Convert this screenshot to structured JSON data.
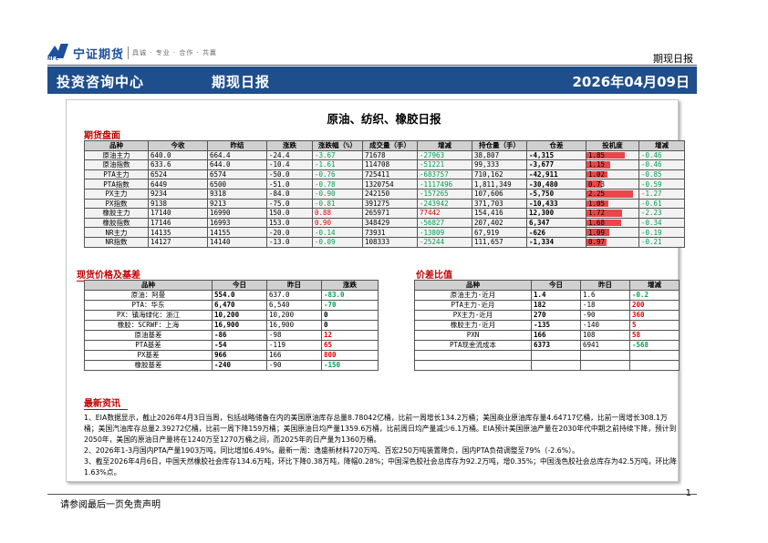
{
  "header": {
    "logo_name": "宁证期货",
    "logo_abbr": "NFC",
    "logo_slogan": "具诚 · 专业 · 合作 · 共赢",
    "report_tag": "期现日报"
  },
  "banner": {
    "org": "投资咨询中心",
    "type": "期现日报",
    "date": "2026年04月09日"
  },
  "doc_title": "原油、纺织、橡胶日报",
  "futures": {
    "section_title": "期货盘面",
    "columns": [
      "品种",
      "今收",
      "昨结",
      "涨跌",
      "涨跌幅（%）",
      "成交量（手）",
      "增减",
      "持仓量（手）",
      "仓差",
      "投机度",
      "增减"
    ],
    "rows": [
      {
        "name": "原油主力",
        "close": "640.0",
        "prev": "664.4",
        "chg": "-24.4",
        "pct": "-3.67",
        "vol": "71678",
        "vol_chg": "-27963",
        "oi": "38,807",
        "oi_chg": "-4,315",
        "spec": "1.85",
        "spec_level": 0.74,
        "spec_chg": "-0.46"
      },
      {
        "name": "原油指数",
        "close": "633.6",
        "prev": "644.0",
        "chg": "-10.4",
        "pct": "-1.61",
        "vol": "114708",
        "vol_chg": "-51221",
        "oi": "99,333",
        "oi_chg": "-3,677",
        "spec": "1.15",
        "spec_level": 0.46,
        "spec_chg": "-0.46"
      },
      {
        "name": "PTA主力",
        "close": "6524",
        "prev": "6574",
        "chg": "-50.0",
        "pct": "-0.76",
        "vol": "725411",
        "vol_chg": "-683757",
        "oi": "710,162",
        "oi_chg": "-42,911",
        "spec": "1.02",
        "spec_level": 0.41,
        "spec_chg": "-0.85"
      },
      {
        "name": "PTA指数",
        "close": "6449",
        "prev": "6500",
        "chg": "-51.0",
        "pct": "-0.78",
        "vol": "1320754",
        "vol_chg": "-1117496",
        "oi": "1,811,349",
        "oi_chg": "-30,480",
        "spec": "0.73",
        "spec_level": 0.29,
        "spec_chg": "-0.59"
      },
      {
        "name": "PX主力",
        "close": "9234",
        "prev": "9318",
        "chg": "-84.0",
        "pct": "-0.90",
        "vol": "242150",
        "vol_chg": "-157265",
        "oi": "107,606",
        "oi_chg": "-5,750",
        "spec": "2.25",
        "spec_level": 0.9,
        "spec_chg": "-1.27"
      },
      {
        "name": "PX指数",
        "close": "9138",
        "prev": "9213",
        "chg": "-75.0",
        "pct": "-0.81",
        "vol": "391275",
        "vol_chg": "-243942",
        "oi": "371,703",
        "oi_chg": "-10,433",
        "spec": "1.05",
        "spec_level": 0.42,
        "spec_chg": "-0.61"
      },
      {
        "name": "橡胶主力",
        "close": "17140",
        "prev": "16990",
        "chg": "150.0",
        "pct": "0.88",
        "vol": "265971",
        "vol_chg": "77442",
        "oi": "154,416",
        "oi_chg": "12,300",
        "spec": "1.72",
        "spec_level": 0.69,
        "spec_chg": "-2.23"
      },
      {
        "name": "橡胶指数",
        "close": "17146",
        "prev": "16993",
        "chg": "153.0",
        "pct": "0.90",
        "vol": "348429",
        "vol_chg": "-56827",
        "oi": "207,402",
        "oi_chg": "6,347",
        "spec": "1.68",
        "spec_level": 0.67,
        "spec_chg": "-0.34"
      },
      {
        "name": "NR主力",
        "close": "14135",
        "prev": "14155",
        "chg": "-20.0",
        "pct": "-0.14",
        "vol": "73931",
        "vol_chg": "-13809",
        "oi": "67,919",
        "oi_chg": "-626",
        "spec": "1.09",
        "spec_level": 0.44,
        "spec_chg": "-0.19"
      },
      {
        "name": "NR指数",
        "close": "14127",
        "prev": "14140",
        "chg": "-13.0",
        "pct": "-0.09",
        "vol": "108333",
        "vol_chg": "-25244",
        "oi": "111,657",
        "oi_chg": "-1,334",
        "spec": "0.97",
        "spec_level": 0.39,
        "spec_chg": "-0.21"
      }
    ]
  },
  "spot": {
    "section_title": "现货价格及基差",
    "columns": [
      "品种",
      "今日",
      "昨日",
      "涨跌"
    ],
    "rows": [
      {
        "name": "原油：阿曼",
        "today": "554.0",
        "yest": "637.0",
        "chg": "-83.0",
        "dir": "neg"
      },
      {
        "name": "PTA：华东",
        "today": "6,470",
        "yest": "6,540",
        "chg": "-70",
        "dir": "neg"
      },
      {
        "name": "PX：镇海绿化：浙江",
        "today": "10,200",
        "yest": "10,200",
        "chg": "0",
        "dir": "zero"
      },
      {
        "name": "橡胶：SCRWF：上海",
        "today": "16,900",
        "yest": "16,900",
        "chg": "0",
        "dir": "zero"
      },
      {
        "name": "原油基差",
        "today": "-86",
        "yest": "-98",
        "chg": "12",
        "dir": "pos"
      },
      {
        "name": "PTA基差",
        "today": "-54",
        "yest": "-119",
        "chg": "65",
        "dir": "pos"
      },
      {
        "name": "PX基差",
        "today": "966",
        "yest": "166",
        "chg": "800",
        "dir": "pos"
      },
      {
        "name": "橡胶基差",
        "today": "-240",
        "yest": "-90",
        "chg": "-150",
        "dir": "neg"
      }
    ]
  },
  "spread": {
    "section_title": "价差比值",
    "columns": [
      "品种",
      "今日",
      "昨日",
      "增减"
    ],
    "rows": [
      {
        "name": "原油主力-近月",
        "today": "1.4",
        "yest": "1.6",
        "chg": "-0.2",
        "dir": "neg"
      },
      {
        "name": "PTA主力-近月",
        "today": "182",
        "yest": "-18",
        "chg": "200",
        "dir": "pos"
      },
      {
        "name": "PX主力-近月",
        "today": "270",
        "yest": "-90",
        "chg": "360",
        "dir": "pos"
      },
      {
        "name": "橡胶主力-近月",
        "today": "-135",
        "yest": "-140",
        "chg": "5",
        "dir": "pos"
      },
      {
        "name": "PXN",
        "today": "166",
        "yest": "108",
        "chg": "58",
        "dir": "pos"
      },
      {
        "name": "PTA现金流成本",
        "today": "6373",
        "yest": "6941",
        "chg": "-568",
        "dir": "neg"
      },
      {
        "name": "",
        "today": "",
        "yest": "",
        "chg": "",
        "dir": "zero"
      },
      {
        "name": "",
        "today": "",
        "yest": "",
        "chg": "",
        "dir": "zero"
      }
    ]
  },
  "news": {
    "section_title": "最新资讯",
    "items": [
      "1、EIA数据显示，截止2026年4月3日当周，包括战略储备在内的美国原油库存总量8.78042亿桶，比前一周增长134.2万桶；美国商业原油库存量4.64717亿桶，比前一周增长308.1万桶；美国汽油库存总量2.39272亿桶，比前一周下降159万桶；美国原油日均产量1359.6万桶，比前周日均产量减少6.1万桶。EIA预计美国原油产量在2030年代中期之前持续下降，预计到2050年，美国的原油日产量将在1240万至1270万桶之间，而2025年的日产量为1360万桶。",
      "2、2026年1-3月国内PTA产量1903万吨，同比增加6.49%。最新一周：逸盛新材料720万吨、百宏250万吨装置降负，国内PTA负荷调整至79%（-2.6%）。",
      "3、截至2026年4月6日，中国天然橡胶社会库存134.6万吨，环比下降0.38万吨，降幅0.28%；中国深色胶社会总库存为92.2万吨，增0.35%；中国浅色胶社会总库存为42.5万吨，环比降1.63%点。"
    ]
  },
  "footer": {
    "page_number": "1",
    "disclaimer": "请参阅最后一页免责声明"
  }
}
